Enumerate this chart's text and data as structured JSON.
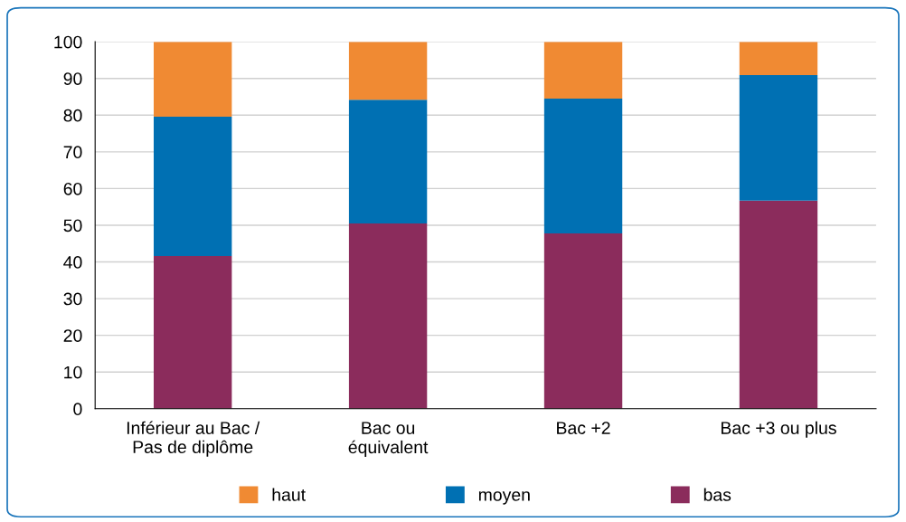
{
  "chart_data": {
    "type": "bar",
    "stacked": true,
    "categories": [
      "Inférieur au Bac /\nPas de diplôme",
      "Bac ou\néquivalent",
      "Bac +2",
      "Bac +3 ou plus"
    ],
    "series": [
      {
        "name": "bas",
        "color": "#8b2c5c",
        "values": [
          41.6,
          50.5,
          47.8,
          56.7
        ]
      },
      {
        "name": "moyen",
        "color": "#0070b3",
        "values": [
          38.0,
          33.7,
          36.7,
          34.2
        ]
      },
      {
        "name": "haut",
        "color": "#f08a33",
        "values": [
          20.4,
          15.8,
          15.5,
          9.1
        ]
      }
    ],
    "ylim": [
      0,
      100
    ],
    "yticks": [
      0,
      10,
      20,
      30,
      40,
      50,
      60,
      70,
      80,
      90,
      100
    ],
    "grid": "y",
    "legend": "bottom"
  }
}
